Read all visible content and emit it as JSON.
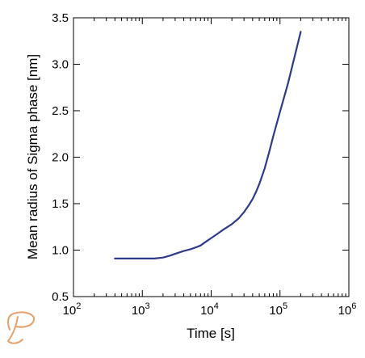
{
  "chart_data": {
    "type": "line",
    "title": "",
    "xlabel": "Time [s]",
    "ylabel": "Mean radius of Sigma phase [nm]",
    "xscale": "log",
    "xlim": [
      100,
      1000000
    ],
    "ylim": [
      0.5,
      3.5
    ],
    "xticks": [
      {
        "value": 100,
        "base": "10",
        "exp": "2"
      },
      {
        "value": 1000,
        "base": "10",
        "exp": "3"
      },
      {
        "value": 10000,
        "base": "10",
        "exp": "4"
      },
      {
        "value": 100000,
        "base": "10",
        "exp": "5"
      },
      {
        "value": 1000000,
        "base": "10",
        "exp": "6"
      }
    ],
    "yticks": [
      {
        "value": 0.5,
        "label": "0.5"
      },
      {
        "value": 1.0,
        "label": "1.0"
      },
      {
        "value": 1.5,
        "label": "1.5"
      },
      {
        "value": 2.0,
        "label": "2.0"
      },
      {
        "value": 2.5,
        "label": "2.5"
      },
      {
        "value": 3.0,
        "label": "3.0"
      },
      {
        "value": 3.5,
        "label": "3.5"
      }
    ],
    "grid": false,
    "series": [
      {
        "color": "#2e3a8c",
        "x": [
          400,
          700,
          1000,
          1500,
          2000,
          2500,
          3000,
          4000,
          5000,
          6000,
          7000,
          8000,
          10000,
          12000,
          15000,
          20000,
          25000,
          30000,
          35000,
          40000,
          45000,
          50000,
          60000,
          70000,
          80000,
          100000,
          130000,
          160000,
          200000
        ],
        "y": [
          0.91,
          0.91,
          0.91,
          0.91,
          0.92,
          0.94,
          0.96,
          0.99,
          1.01,
          1.03,
          1.05,
          1.08,
          1.13,
          1.17,
          1.22,
          1.28,
          1.34,
          1.41,
          1.48,
          1.55,
          1.63,
          1.71,
          1.88,
          2.06,
          2.23,
          2.49,
          2.79,
          3.06,
          3.35
        ]
      }
    ]
  },
  "logo": {
    "name": "thermo-calc-logo-icon",
    "color": "#e8a06a"
  }
}
